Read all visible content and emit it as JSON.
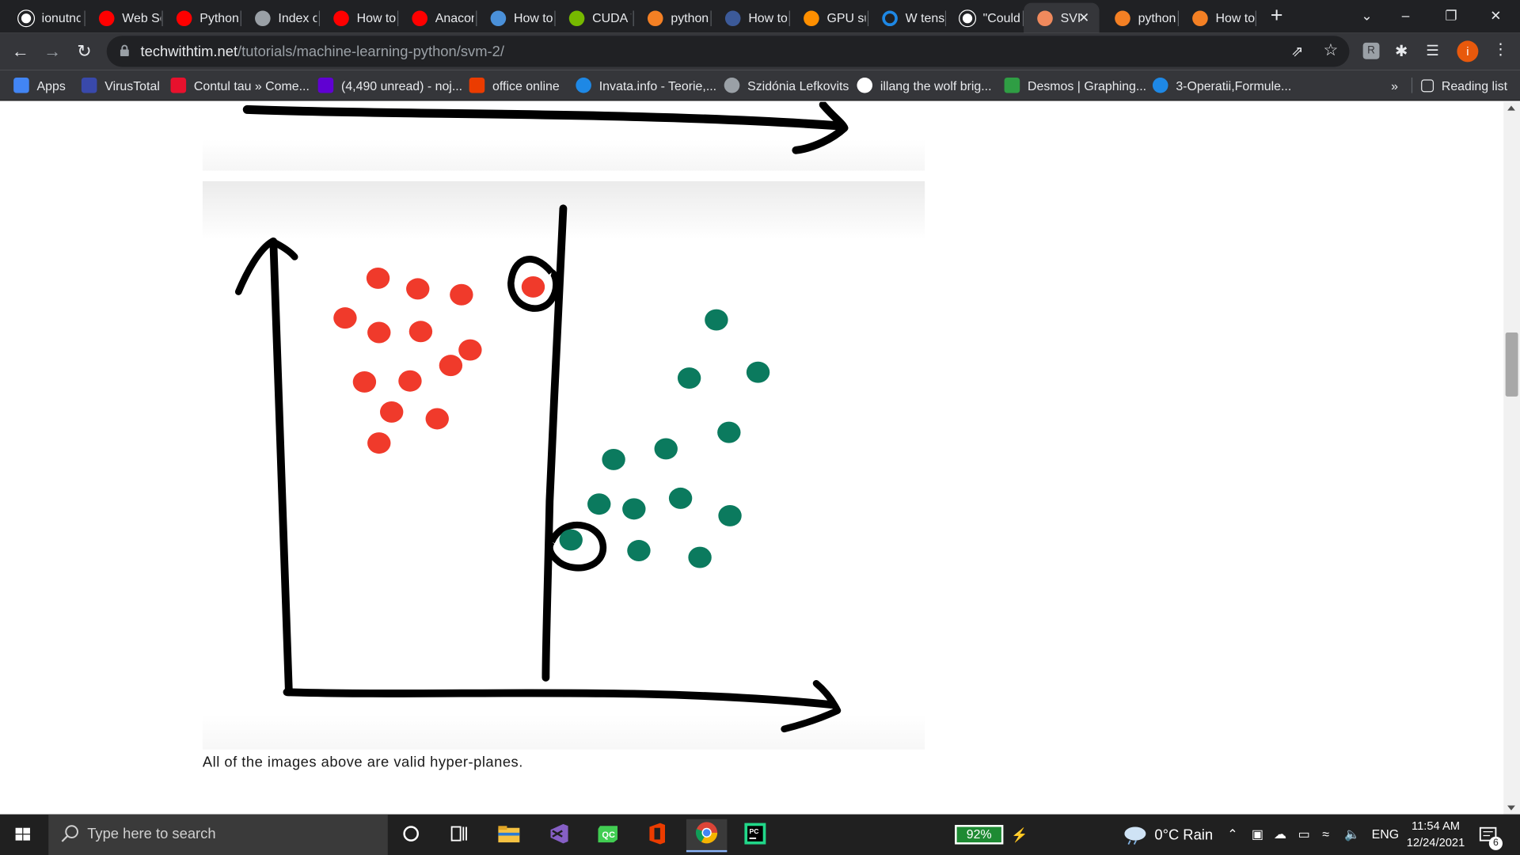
{
  "browser": {
    "tabs": [
      {
        "label": "ionutnc",
        "icon": "github-icon"
      },
      {
        "label": "Web Sc",
        "icon": "youtube-icon"
      },
      {
        "label": "Python",
        "icon": "youtube-icon"
      },
      {
        "label": "Index o",
        "icon": "globe-icon"
      },
      {
        "label": "How to",
        "icon": "youtube-icon"
      },
      {
        "label": "Anacon",
        "icon": "youtube-icon"
      },
      {
        "label": "How to",
        "icon": "site-icon"
      },
      {
        "label": "CUDA T",
        "icon": "nvidia-icon"
      },
      {
        "label": "python",
        "icon": "stackoverflow-icon"
      },
      {
        "label": "How to",
        "icon": "tds-icon"
      },
      {
        "label": "GPU su",
        "icon": "tensorflow-icon"
      },
      {
        "label": "W tens",
        "icon": "circle-icon"
      },
      {
        "label": "\"Could",
        "icon": "github-icon"
      },
      {
        "label": "SVI",
        "icon": "techwithtim-icon",
        "active": true
      },
      {
        "label": "python",
        "icon": "stackoverflow-icon"
      },
      {
        "label": "How to",
        "icon": "stackoverflow-icon"
      }
    ],
    "url_host": "techwithtim.net",
    "url_path": "/tutorials/machine-learning-python/svm-2/",
    "profile_initial": "i",
    "bookmarks": [
      {
        "label": "Apps",
        "icon": "apps-grid-icon"
      },
      {
        "label": "VirusTotal",
        "icon": "virustotal-icon"
      },
      {
        "label": "Contul tau » Come...",
        "icon": "emag-icon"
      },
      {
        "label": "(4,490 unread) - noj...",
        "icon": "yahoo-mail-icon"
      },
      {
        "label": "office online",
        "icon": "office-icon"
      },
      {
        "label": "Invata.info - Teorie,...",
        "icon": "invata-icon"
      },
      {
        "label": "Szidónia Lefkovits",
        "icon": "globe-icon"
      },
      {
        "label": "illang the wolf brig...",
        "icon": "google-icon"
      },
      {
        "label": "Desmos | Graphing...",
        "icon": "desmos-icon"
      },
      {
        "label": "3-Operatii,Formule...",
        "icon": "site-icon"
      }
    ],
    "bookmarks_overflow": "»",
    "reading_list": "Reading list"
  },
  "page": {
    "caption": "All of the images above are valid hyper-planes."
  },
  "taskbar": {
    "search_placeholder": "Type here to search",
    "battery": "92%",
    "weather": "0°C  Rain",
    "language": "ENG",
    "time": "11:54 AM",
    "date": "12/24/2021",
    "notifications": "6",
    "apps": [
      "cortana-icon",
      "task-view-icon",
      "file-explorer-icon",
      "visual-studio-icon",
      "qt-creator-icon",
      "office-icon",
      "chrome-icon",
      "pycharm-icon"
    ]
  },
  "colors": {
    "red_class": "#f03a2b",
    "green_class": "#0b7a5e",
    "chrome_dark": "#202124",
    "chrome_toolbar": "#35363a"
  }
}
